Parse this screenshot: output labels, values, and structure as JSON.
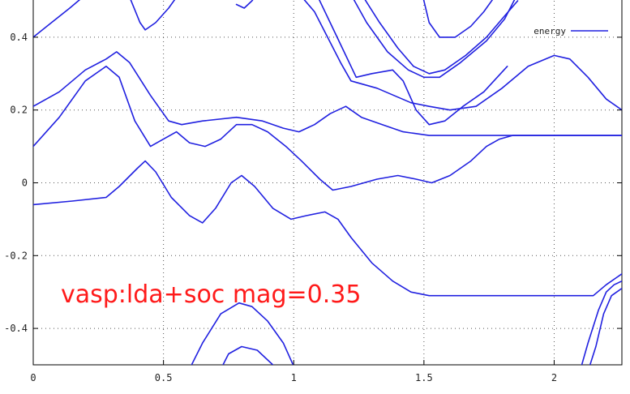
{
  "chart_data": {
    "type": "line",
    "title": "",
    "xlabel": "",
    "ylabel": "",
    "xlim": [
      0,
      2.26
    ],
    "ylim": [
      -0.5,
      0.5
    ],
    "grid": true,
    "legend_position": "top-right",
    "x_ticks": [
      "0",
      "0.5",
      "1",
      "1.5",
      "2"
    ],
    "y_ticks": [
      "0.4",
      "0.2",
      "0",
      "-0.2",
      "-0.4"
    ],
    "annotation": "vasp:lda+soc mag=0.35",
    "series": [
      {
        "name": "energy",
        "color": "#2020e0",
        "bands": [
          [
            [
              0,
              0.4
            ],
            [
              0.07,
              0.44
            ],
            [
              0.14,
              0.48
            ],
            [
              0.19,
              0.51
            ]
          ],
          [
            [
              0.37,
              0.51
            ],
            [
              0.41,
              0.44
            ],
            [
              0.43,
              0.42
            ],
            [
              0.47,
              0.44
            ],
            [
              0.52,
              0.48
            ],
            [
              0.55,
              0.51
            ]
          ],
          [
            [
              0.78,
              0.49
            ],
            [
              0.81,
              0.48
            ],
            [
              0.84,
              0.5
            ],
            [
              0.86,
              0.52
            ]
          ],
          [
            [
              1.02,
              0.52
            ],
            [
              1.08,
              0.47
            ],
            [
              1.13,
              0.4
            ],
            [
              1.18,
              0.33
            ],
            [
              1.22,
              0.28
            ],
            [
              1.32,
              0.26
            ],
            [
              1.45,
              0.22
            ],
            [
              1.52,
              0.21
            ],
            [
              1.6,
              0.2
            ],
            [
              1.7,
              0.21
            ],
            [
              1.8,
              0.26
            ],
            [
              1.9,
              0.32
            ],
            [
              2.0,
              0.35
            ],
            [
              2.06,
              0.34
            ],
            [
              2.13,
              0.29
            ],
            [
              2.2,
              0.23
            ],
            [
              2.26,
              0.2
            ]
          ],
          [
            [
              1.08,
              0.53
            ],
            [
              1.14,
              0.44
            ],
            [
              1.2,
              0.35
            ],
            [
              1.24,
              0.29
            ],
            [
              1.3,
              0.3
            ],
            [
              1.38,
              0.31
            ],
            [
              1.42,
              0.28
            ],
            [
              1.47,
              0.2
            ],
            [
              1.52,
              0.16
            ],
            [
              1.58,
              0.17
            ],
            [
              1.65,
              0.21
            ],
            [
              1.73,
              0.25
            ],
            [
              1.82,
              0.32
            ]
          ],
          [
            [
              1.21,
              0.53
            ],
            [
              1.28,
              0.44
            ],
            [
              1.36,
              0.36
            ],
            [
              1.44,
              0.31
            ],
            [
              1.5,
              0.29
            ],
            [
              1.56,
              0.29
            ],
            [
              1.64,
              0.33
            ],
            [
              1.74,
              0.39
            ],
            [
              1.81,
              0.45
            ],
            [
              1.86,
              0.52
            ]
          ],
          [
            [
              1.25,
              0.53
            ],
            [
              1.33,
              0.44
            ],
            [
              1.4,
              0.37
            ],
            [
              1.46,
              0.32
            ],
            [
              1.52,
              0.3
            ],
            [
              1.58,
              0.31
            ],
            [
              1.66,
              0.35
            ],
            [
              1.74,
              0.4
            ],
            [
              1.8,
              0.45
            ],
            [
              1.86,
              0.5
            ]
          ],
          [
            [
              1.49,
              0.53
            ],
            [
              1.52,
              0.44
            ],
            [
              1.56,
              0.4
            ],
            [
              1.62,
              0.4
            ],
            [
              1.68,
              0.43
            ],
            [
              1.73,
              0.47
            ],
            [
              1.77,
              0.51
            ]
          ],
          [
            [
              0,
              0.21
            ],
            [
              0.1,
              0.25
            ],
            [
              0.2,
              0.31
            ],
            [
              0.28,
              0.34
            ],
            [
              0.32,
              0.36
            ],
            [
              0.37,
              0.33
            ],
            [
              0.45,
              0.24
            ],
            [
              0.52,
              0.17
            ],
            [
              0.57,
              0.16
            ],
            [
              0.65,
              0.17
            ],
            [
              0.78,
              0.18
            ],
            [
              0.88,
              0.17
            ],
            [
              0.96,
              0.15
            ],
            [
              1.02,
              0.14
            ],
            [
              1.08,
              0.16
            ],
            [
              1.14,
              0.19
            ],
            [
              1.2,
              0.21
            ],
            [
              1.26,
              0.18
            ],
            [
              1.34,
              0.16
            ],
            [
              1.42,
              0.14
            ],
            [
              1.52,
              0.13
            ],
            [
              1.62,
              0.13
            ],
            [
              1.75,
              0.13
            ],
            [
              1.85,
              0.13
            ],
            [
              2.0,
              0.13
            ],
            [
              2.26,
              0.13
            ]
          ],
          [
            [
              0,
              0.1
            ],
            [
              0.1,
              0.18
            ],
            [
              0.2,
              0.28
            ],
            [
              0.28,
              0.32
            ],
            [
              0.33,
              0.29
            ],
            [
              0.39,
              0.17
            ],
            [
              0.45,
              0.1
            ],
            [
              0.5,
              0.12
            ],
            [
              0.55,
              0.14
            ],
            [
              0.6,
              0.11
            ],
            [
              0.66,
              0.1
            ],
            [
              0.72,
              0.12
            ],
            [
              0.78,
              0.16
            ],
            [
              0.84,
              0.16
            ],
            [
              0.9,
              0.14
            ],
            [
              0.97,
              0.1
            ],
            [
              1.03,
              0.06
            ],
            [
              1.1,
              0.01
            ],
            [
              1.15,
              -0.02
            ],
            [
              1.22,
              -0.01
            ],
            [
              1.32,
              0.01
            ],
            [
              1.4,
              0.02
            ],
            [
              1.47,
              0.01
            ],
            [
              1.53,
              0.0
            ],
            [
              1.6,
              0.02
            ],
            [
              1.68,
              0.06
            ],
            [
              1.74,
              0.1
            ],
            [
              1.79,
              0.12
            ],
            [
              1.84,
              0.13
            ],
            [
              2.0,
              0.13
            ],
            [
              2.26,
              0.13
            ]
          ],
          [
            [
              0,
              -0.06
            ],
            [
              0.15,
              -0.05
            ],
            [
              0.28,
              -0.04
            ],
            [
              0.33,
              -0.01
            ],
            [
              0.4,
              0.04
            ],
            [
              0.43,
              0.06
            ],
            [
              0.47,
              0.03
            ],
            [
              0.53,
              -0.04
            ],
            [
              0.6,
              -0.09
            ],
            [
              0.65,
              -0.11
            ],
            [
              0.7,
              -0.07
            ],
            [
              0.76,
              0.0
            ],
            [
              0.8,
              0.02
            ],
            [
              0.85,
              -0.01
            ],
            [
              0.92,
              -0.07
            ],
            [
              0.99,
              -0.1
            ],
            [
              1.05,
              -0.09
            ],
            [
              1.12,
              -0.08
            ],
            [
              1.17,
              -0.1
            ],
            [
              1.22,
              -0.15
            ],
            [
              1.3,
              -0.22
            ],
            [
              1.38,
              -0.27
            ],
            [
              1.45,
              -0.3
            ],
            [
              1.52,
              -0.31
            ],
            [
              1.7,
              -0.31
            ],
            [
              1.9,
              -0.31
            ],
            [
              2.1,
              -0.31
            ],
            [
              2.15,
              -0.31
            ],
            [
              2.2,
              -0.28
            ],
            [
              2.26,
              -0.25
            ]
          ],
          [
            [
              0.58,
              -0.54
            ],
            [
              0.65,
              -0.44
            ],
            [
              0.72,
              -0.36
            ],
            [
              0.79,
              -0.33
            ],
            [
              0.84,
              -0.34
            ],
            [
              0.9,
              -0.38
            ],
            [
              0.96,
              -0.44
            ],
            [
              1.01,
              -0.52
            ]
          ],
          [
            [
              0.7,
              -0.54
            ],
            [
              0.75,
              -0.47
            ],
            [
              0.8,
              -0.45
            ],
            [
              0.86,
              -0.46
            ],
            [
              0.92,
              -0.5
            ],
            [
              0.96,
              -0.54
            ]
          ],
          [
            [
              2.09,
              -0.54
            ],
            [
              2.13,
              -0.44
            ],
            [
              2.17,
              -0.35
            ],
            [
              2.2,
              -0.3
            ],
            [
              2.23,
              -0.28
            ],
            [
              2.26,
              -0.27
            ]
          ],
          [
            [
              2.12,
              -0.54
            ],
            [
              2.16,
              -0.45
            ],
            [
              2.19,
              -0.36
            ],
            [
              2.22,
              -0.31
            ],
            [
              2.26,
              -0.29
            ]
          ]
        ]
      }
    ]
  }
}
